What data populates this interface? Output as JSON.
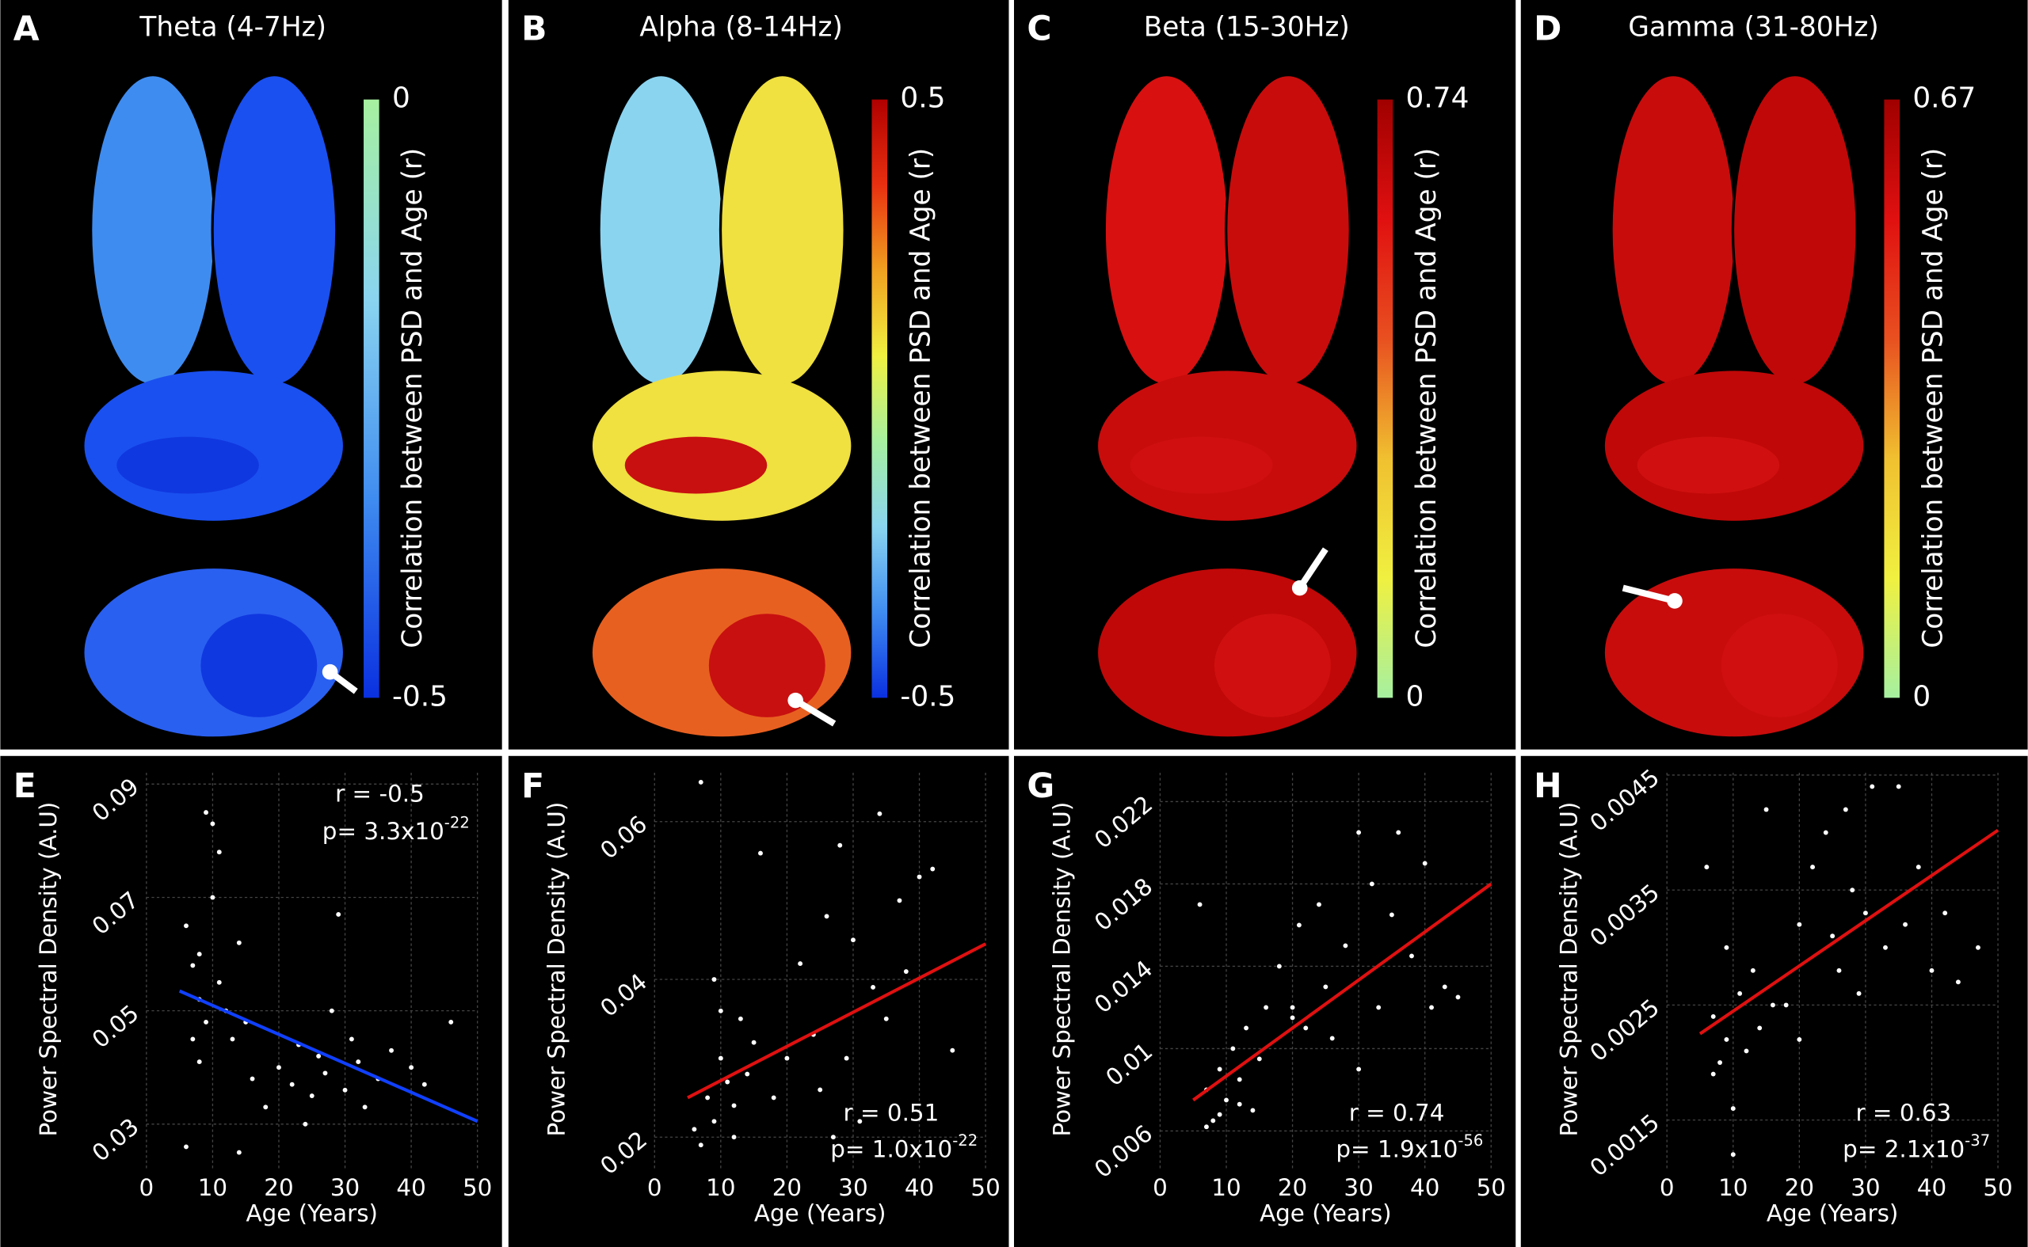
{
  "chart_data": [
    {
      "type": "colorbar",
      "label": "A",
      "title": "Theta (4-7Hz)",
      "ylabel": "Correlation between PSD and Age (r)",
      "ylim": [
        -0.5,
        0
      ],
      "yticks": [
        -0.5,
        0
      ],
      "colormap": [
        "#a6f0a0",
        "#8ad4f0",
        "#3f8cf0",
        "#0a30e0"
      ]
    },
    {
      "type": "colorbar",
      "label": "B",
      "title": "Alpha (8-14Hz)",
      "ylabel": "Correlation between PSD and Age (r)",
      "ylim": [
        -0.5,
        0.5
      ],
      "yticks": [
        -0.5,
        0.5
      ],
      "colormap": [
        "#b00000",
        "#e83010",
        "#f0a020",
        "#f0f040",
        "#a6f0a0",
        "#8ad4f0",
        "#3f8cf0",
        "#0a30e0"
      ]
    },
    {
      "type": "colorbar",
      "label": "C",
      "title": "Beta (15-30Hz)",
      "ylabel": "Correlation between PSD and Age (r)",
      "ylim": [
        0,
        0.74
      ],
      "yticks": [
        0,
        0.74
      ],
      "colormap": [
        "#a00000",
        "#e01010",
        "#e85020",
        "#f0c030",
        "#f0f040",
        "#a6f0a0"
      ]
    },
    {
      "type": "colorbar",
      "label": "D",
      "title": "Gamma (31-80Hz)",
      "ylabel": "Correlation between PSD and Age (r)",
      "ylim": [
        0,
        0.67
      ],
      "yticks": [
        0,
        0.67
      ],
      "colormap": [
        "#a00000",
        "#e01010",
        "#e85020",
        "#f0c030",
        "#f0f040",
        "#a6f0a0"
      ]
    },
    {
      "type": "scatter",
      "label": "E",
      "xlabel": "Age (Years)",
      "ylabel": "Power Spectral Density (A.U)",
      "grid": true,
      "xlim": [
        0,
        50
      ],
      "xticks": [
        0,
        10,
        20,
        30,
        40,
        50
      ],
      "ylim": [
        0.022,
        0.092
      ],
      "yticks": [
        0.03,
        0.05,
        0.07,
        0.09
      ],
      "annotations": {
        "r": "r = -0.5",
        "p": "p= 3.3x10",
        "p_exponent": "-22"
      },
      "annotation_corner": "upper right",
      "series": [
        {
          "mode": "markers",
          "color": "#ffffff",
          "x": [
            6,
            7,
            8,
            9,
            10,
            8,
            9,
            10,
            11,
            12,
            13,
            14,
            7,
            8,
            15,
            16,
            18,
            20,
            22,
            23,
            25,
            26,
            27,
            28,
            29,
            30,
            32,
            33,
            35,
            37,
            40,
            42,
            46,
            6,
            14,
            11,
            24,
            31
          ],
          "values": [
            0.065,
            0.058,
            0.06,
            0.085,
            0.083,
            0.052,
            0.048,
            0.07,
            0.055,
            0.05,
            0.045,
            0.062,
            0.045,
            0.041,
            0.048,
            0.038,
            0.033,
            0.04,
            0.037,
            0.044,
            0.035,
            0.042,
            0.039,
            0.05,
            0.067,
            0.036,
            0.041,
            0.033,
            0.038,
            0.043,
            0.04,
            0.037,
            0.048,
            0.026,
            0.025,
            0.078,
            0.03,
            0.045
          ]
        },
        {
          "mode": "line",
          "color": "#1040ff",
          "x": [
            5,
            50
          ],
          "values": [
            0.0535,
            0.0305
          ]
        }
      ]
    },
    {
      "type": "scatter",
      "label": "F",
      "xlabel": "Age (Years)",
      "ylabel": "Power Spectral Density (A.U)",
      "grid": true,
      "xlim": [
        0,
        50
      ],
      "xticks": [
        0,
        10,
        20,
        30,
        40,
        50
      ],
      "ylim": [
        0.0159,
        0.0662
      ],
      "yticks": [
        0.02,
        0.04,
        0.06
      ],
      "annotations": {
        "r": "r = 0.51",
        "p": "p= 1.0x10",
        "p_exponent": "-22"
      },
      "annotation_corner": "lower right",
      "series": [
        {
          "mode": "markers",
          "color": "#ffffff",
          "x": [
            7,
            8,
            9,
            10,
            11,
            12,
            13,
            14,
            15,
            16,
            6,
            7,
            10,
            12,
            18,
            20,
            22,
            24,
            25,
            26,
            28,
            29,
            30,
            31,
            33,
            34,
            35,
            37,
            38,
            40,
            42,
            45,
            9,
            27
          ],
          "values": [
            0.065,
            0.025,
            0.022,
            0.03,
            0.027,
            0.024,
            0.035,
            0.028,
            0.032,
            0.056,
            0.021,
            0.019,
            0.036,
            0.02,
            0.025,
            0.03,
            0.042,
            0.033,
            0.026,
            0.048,
            0.057,
            0.03,
            0.045,
            0.022,
            0.039,
            0.061,
            0.035,
            0.05,
            0.041,
            0.053,
            0.054,
            0.031,
            0.04,
            0.02
          ]
        },
        {
          "mode": "line",
          "color": "#e01010",
          "x": [
            5,
            50
          ],
          "values": [
            0.025,
            0.0445
          ]
        }
      ]
    },
    {
      "type": "scatter",
      "label": "G",
      "xlabel": "Age (Years)",
      "ylabel": "Power Spectral Density (A.U)",
      "grid": true,
      "xlim": [
        0,
        50
      ],
      "xticks": [
        0,
        10,
        20,
        30,
        40,
        50
      ],
      "ylim": [
        0.00413,
        0.0234
      ],
      "yticks": [
        0.006,
        0.01,
        0.014,
        0.018,
        0.022
      ],
      "annotations": {
        "r": "r = 0.74",
        "p": "p= 1.9x10",
        "p_exponent": "-56"
      },
      "annotation_corner": "lower right",
      "series": [
        {
          "mode": "markers",
          "color": "#ffffff",
          "x": [
            6,
            7,
            8,
            9,
            10,
            11,
            12,
            13,
            14,
            15,
            16,
            7,
            9,
            12,
            18,
            20,
            21,
            22,
            24,
            25,
            26,
            28,
            30,
            32,
            33,
            35,
            36,
            38,
            40,
            41,
            43,
            45,
            20,
            30
          ],
          "values": [
            0.017,
            0.008,
            0.0065,
            0.009,
            0.0075,
            0.01,
            0.0085,
            0.011,
            0.007,
            0.0095,
            0.012,
            0.0062,
            0.0068,
            0.0073,
            0.014,
            0.012,
            0.016,
            0.011,
            0.017,
            0.013,
            0.0105,
            0.015,
            0.0205,
            0.018,
            0.012,
            0.0165,
            0.0205,
            0.0145,
            0.019,
            0.012,
            0.013,
            0.0125,
            0.0115,
            0.009
          ]
        },
        {
          "mode": "line",
          "color": "#e01010",
          "x": [
            5,
            50
          ],
          "values": [
            0.0075,
            0.018
          ]
        }
      ]
    },
    {
      "type": "scatter",
      "label": "H",
      "xlabel": "Age (Years)",
      "ylabel": "Power Spectral Density (A.U)",
      "grid": true,
      "xlim": [
        0,
        50
      ],
      "xticks": [
        0,
        10,
        20,
        30,
        40,
        50
      ],
      "ylim": [
        0.00107,
        0.00452
      ],
      "yticks": [
        0.0015,
        0.0025,
        0.0035,
        0.0045
      ],
      "annotations": {
        "r": "r = 0.63",
        "p": "p= 2.1x10",
        "p_exponent": "-37"
      },
      "annotation_corner": "lower right",
      "series": [
        {
          "mode": "markers",
          "color": "#ffffff",
          "x": [
            6,
            7,
            8,
            9,
            10,
            10,
            11,
            12,
            13,
            14,
            15,
            16,
            7,
            9,
            18,
            20,
            22,
            24,
            25,
            26,
            27,
            28,
            29,
            30,
            31,
            33,
            35,
            36,
            38,
            40,
            42,
            44,
            47,
            20
          ],
          "values": [
            0.0037,
            0.0024,
            0.002,
            0.0022,
            0.0016,
            0.0012,
            0.0026,
            0.0021,
            0.0028,
            0.0023,
            0.0042,
            0.0025,
            0.0019,
            0.003,
            0.0025,
            0.0032,
            0.0037,
            0.004,
            0.0031,
            0.0028,
            0.0042,
            0.0035,
            0.0026,
            0.0033,
            0.0044,
            0.003,
            0.0044,
            0.0032,
            0.0037,
            0.0028,
            0.0033,
            0.0027,
            0.003,
            0.0022
          ]
        },
        {
          "mode": "line",
          "color": "#e01010",
          "x": [
            5,
            50
          ],
          "values": [
            0.00225,
            0.00402
          ]
        }
      ]
    }
  ]
}
